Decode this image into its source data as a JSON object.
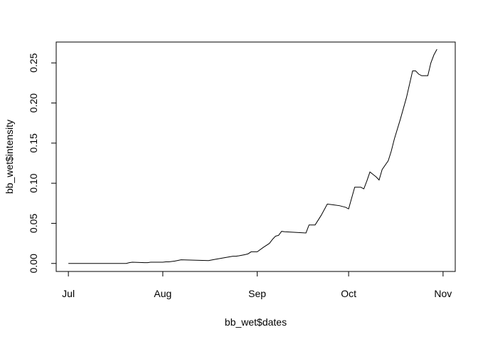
{
  "chart_data": {
    "type": "line",
    "title": "",
    "xlabel": "bb_wet$dates",
    "ylabel": "bb_wet$intensity",
    "x_ticks": [
      "Jul",
      "Aug",
      "Sep",
      "Oct",
      "Nov"
    ],
    "x_tick_dates": [
      "2021-07-01",
      "2021-08-01",
      "2021-09-01",
      "2021-10-01",
      "2021-11-01"
    ],
    "y_ticks": [
      0.0,
      0.05,
      0.1,
      0.15,
      0.2,
      0.25
    ],
    "y_tick_labels": [
      "0.00",
      "0.05",
      "0.10",
      "0.15",
      "0.20",
      "0.25"
    ],
    "xlim": [
      "2021-06-27",
      "2021-11-05"
    ],
    "ylim": [
      -0.01,
      0.276
    ],
    "grid": false,
    "color": "#000000",
    "series": [
      {
        "x": [
          "2021-07-01",
          "2021-07-10",
          "2021-07-20",
          "2021-07-21",
          "2021-07-22",
          "2021-07-26",
          "2021-07-27",
          "2021-07-28",
          "2021-08-01",
          "2021-08-02",
          "2021-08-03",
          "2021-08-05",
          "2021-08-07",
          "2021-08-16",
          "2021-08-18",
          "2021-08-21",
          "2021-08-24",
          "2021-08-25",
          "2021-08-26",
          "2021-08-28",
          "2021-08-29",
          "2021-08-30",
          "2021-09-01",
          "2021-09-03",
          "2021-09-05",
          "2021-09-06",
          "2021-09-07",
          "2021-09-08",
          "2021-09-09",
          "2021-09-10",
          "2021-09-17",
          "2021-09-18",
          "2021-09-19",
          "2021-09-20",
          "2021-09-22",
          "2021-09-24",
          "2021-09-26",
          "2021-09-28",
          "2021-09-29",
          "2021-09-30",
          "2021-10-01",
          "2021-10-03",
          "2021-10-05",
          "2021-10-06",
          "2021-10-07",
          "2021-10-08",
          "2021-10-09",
          "2021-10-10",
          "2021-10-11",
          "2021-10-12",
          "2021-10-14",
          "2021-10-15",
          "2021-10-16",
          "2021-10-18",
          "2021-10-20",
          "2021-10-22",
          "2021-10-23",
          "2021-10-24",
          "2021-10-25",
          "2021-10-27",
          "2021-10-28",
          "2021-10-29",
          "2021-10-30"
        ],
        "y": [
          0.0,
          0.0,
          0.0,
          0.001,
          0.0015,
          0.001,
          0.001,
          0.0015,
          0.0015,
          0.002,
          0.002,
          0.003,
          0.0045,
          0.0035,
          0.005,
          0.007,
          0.009,
          0.009,
          0.0095,
          0.011,
          0.012,
          0.0145,
          0.0145,
          0.02,
          0.025,
          0.03,
          0.034,
          0.035,
          0.04,
          0.0395,
          0.038,
          0.048,
          0.048,
          0.048,
          0.06,
          0.074,
          0.073,
          0.072,
          0.071,
          0.07,
          0.068,
          0.095,
          0.095,
          0.093,
          0.103,
          0.114,
          0.111,
          0.108,
          0.104,
          0.117,
          0.128,
          0.14,
          0.155,
          0.18,
          0.207,
          0.24,
          0.24,
          0.236,
          0.234,
          0.234,
          0.25,
          0.26,
          0.267
        ]
      }
    ]
  }
}
